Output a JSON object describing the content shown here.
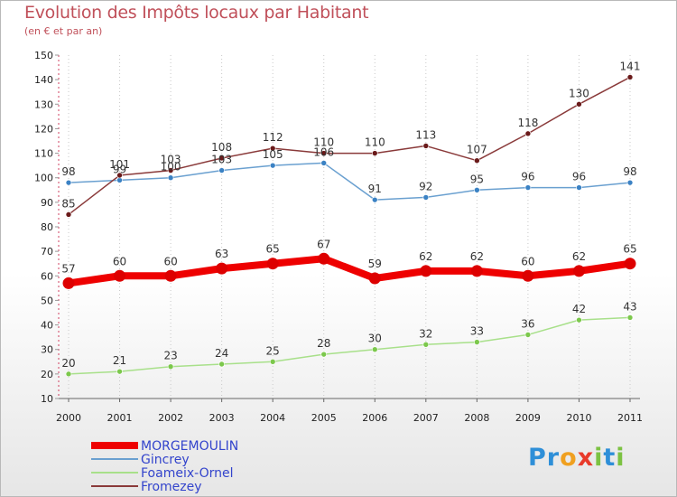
{
  "title": "Evolution des Impôts locaux par Habitant",
  "subtitle": "(en € et par an)",
  "logo": {
    "letters": [
      "P",
      "r",
      "o",
      "x",
      "i",
      "t",
      "i"
    ],
    "colors": [
      "#2e8fd8",
      "#2e8fd8",
      "#f0a020",
      "#e83a2a",
      "#7cc242",
      "#2e8fd8",
      "#7cc242"
    ]
  },
  "chart_data": {
    "type": "line",
    "title": "Evolution des Impôts locaux par Habitant",
    "subtitle": "(en € et par an)",
    "xlabel": "",
    "ylabel": "",
    "x": [
      "2000",
      "2001",
      "2002",
      "2003",
      "2004",
      "2005",
      "2006",
      "2007",
      "2008",
      "2009",
      "2010",
      "2011"
    ],
    "ylim": [
      10,
      150
    ],
    "yticks": [
      10,
      20,
      30,
      40,
      50,
      60,
      70,
      80,
      90,
      100,
      110,
      120,
      130,
      140,
      150
    ],
    "grid": "vertical-dotted",
    "legend_position": "bottom-left",
    "series": [
      {
        "name": "MORGEMOULIN",
        "color": "#ee0000",
        "marker": "#dd0000",
        "values": [
          57,
          60,
          60,
          63,
          65,
          67,
          59,
          62,
          62,
          60,
          62,
          65
        ],
        "bold": true
      },
      {
        "name": "Gincrey",
        "color": "#6aa0d0",
        "marker": "#3b82c4",
        "values": [
          98,
          99,
          100,
          103,
          105,
          106,
          91,
          92,
          95,
          96,
          96,
          98
        ]
      },
      {
        "name": "Foameix-Ornel",
        "color": "#a8e08a",
        "marker": "#7cc84c",
        "values": [
          20,
          21,
          23,
          24,
          25,
          28,
          30,
          32,
          33,
          36,
          42,
          43
        ]
      },
      {
        "name": "Fromezey",
        "color": "#8a3a3a",
        "marker": "#6a1a1a",
        "values": [
          85,
          101,
          103,
          108,
          112,
          110,
          110,
          113,
          107,
          118,
          130,
          141
        ]
      }
    ],
    "labels": [
      [
        "57",
        "60",
        "60",
        "63",
        "65",
        "67",
        "59",
        "62",
        "62",
        "60",
        "62",
        "65"
      ],
      [
        "98",
        "99",
        "100",
        "103",
        "105",
        "106",
        "91",
        "92",
        "95",
        "96",
        "96",
        "98"
      ],
      [
        "20",
        "21",
        "23",
        "24",
        "25",
        "28",
        "30",
        "32",
        "33",
        "36",
        "42",
        "43"
      ],
      [
        "85",
        "101",
        "103",
        "108",
        "112",
        "110",
        "110",
        "113",
        "107",
        "118",
        "130",
        "141"
      ]
    ]
  }
}
